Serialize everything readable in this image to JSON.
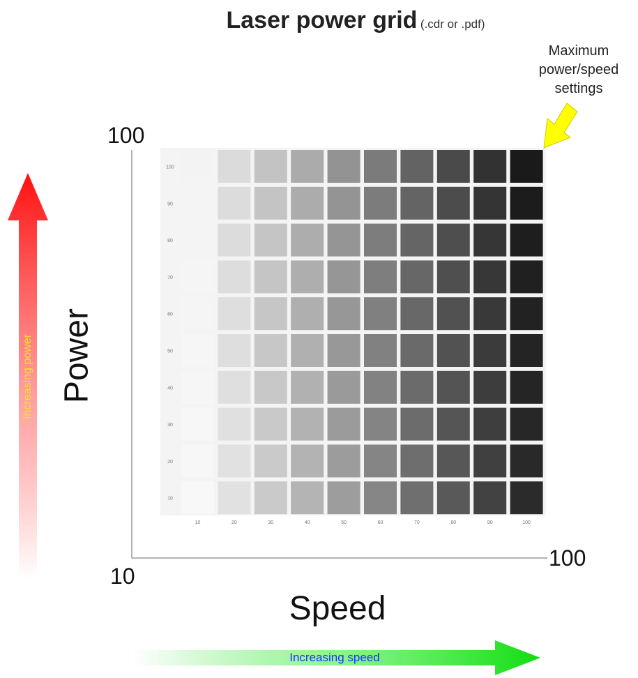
{
  "title": {
    "main": "Laser power grid",
    "sub": "(.cdr or .pdf)"
  },
  "annotation": {
    "line1": "Maximum",
    "line2": "power/speed",
    "line3": "settings",
    "arrow_color": "#ffff00"
  },
  "axes": {
    "power_label": "Power",
    "speed_label": "Speed",
    "y_max": "100",
    "origin": "10",
    "x_max": "100"
  },
  "grid": {
    "speed_values": [
      "10",
      "20",
      "30",
      "40",
      "50",
      "60",
      "70",
      "80",
      "90",
      "100"
    ],
    "power_values": [
      "100",
      "90",
      "80",
      "70",
      "60",
      "50",
      "40",
      "30",
      "20",
      "10"
    ]
  },
  "arrows": {
    "power_text": "Increasing power",
    "power_color": "#ff2020",
    "speed_text": "Increasing speed",
    "speed_color": "#22dd22"
  }
}
